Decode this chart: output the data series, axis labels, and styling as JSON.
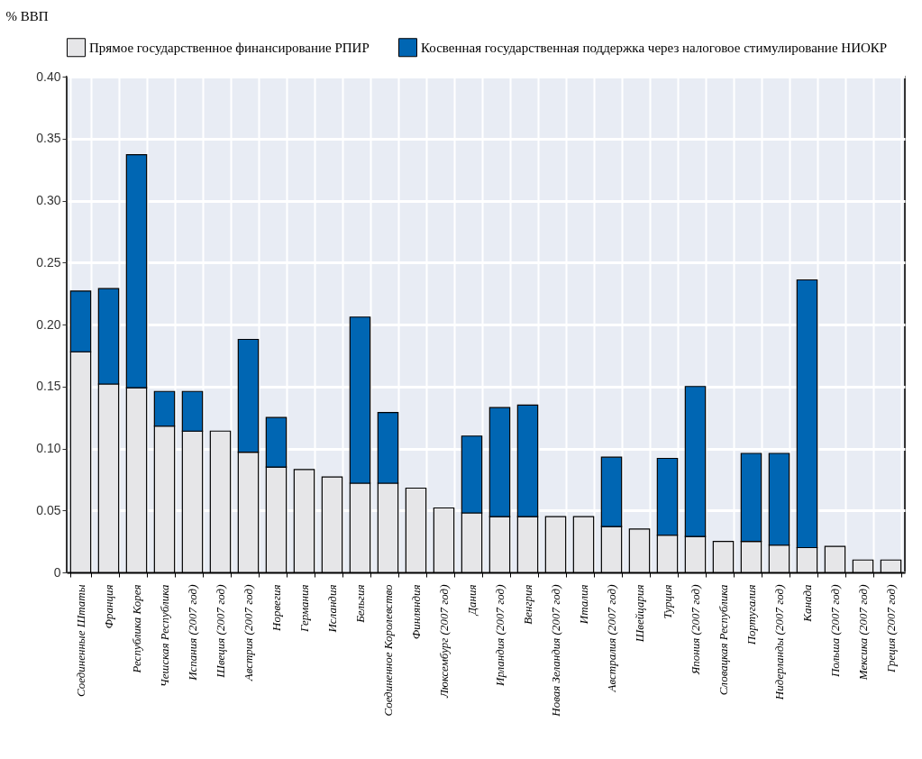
{
  "chart_data": {
    "type": "bar",
    "stacked": true,
    "ylabel": "% ВВП",
    "categories": [
      "Соединенные Штаты",
      "Франция",
      "Республика Корея",
      "Чешская Республика",
      "Испания (2007 год)",
      "Швеция (2007 год)",
      "Австрия (2007 год)",
      "Норвегия",
      "Германия",
      "Исландия",
      "Бельгия",
      "Соединенное Королевство",
      "Финляндия",
      "Люксембург (2007 год)",
      "Дания",
      "Ирландия (2007 год)",
      "Венгрия",
      "Новая Зеландия (2007 год)",
      "Италия",
      "Австралия (2007 год)",
      "Швейцария",
      "Турция",
      "Япония (2007 год)",
      "Словацкая Республика",
      "Португалия",
      "Нидерланды (2007 год)",
      "Канада",
      "Польша (2007 год)",
      "Мексика (2007 год)",
      "Греция (2007 год)"
    ],
    "series": [
      {
        "name": "Прямое государственное финансирование РПИР",
        "color": "#e6e6e8",
        "values": [
          0.178,
          0.152,
          0.149,
          0.118,
          0.114,
          0.114,
          0.097,
          0.085,
          0.083,
          0.077,
          0.072,
          0.072,
          0.068,
          0.052,
          0.048,
          0.045,
          0.045,
          0.045,
          0.045,
          0.037,
          0.035,
          0.03,
          0.029,
          0.025,
          0.025,
          0.022,
          0.02,
          0.021,
          0.01,
          0.01
        ]
      },
      {
        "name": "Косвенная государственная поддержка через налоговое стимулирование НИОКР",
        "color": "#0066b3",
        "values": [
          0.049,
          0.077,
          0.188,
          0.028,
          0.032,
          null,
          0.091,
          0.04,
          null,
          null,
          0.134,
          0.057,
          null,
          null,
          0.062,
          0.088,
          0.09,
          null,
          null,
          0.056,
          null,
          0.062,
          0.121,
          null,
          0.071,
          0.074,
          0.216,
          null,
          null,
          null
        ]
      }
    ],
    "ylim": [
      0,
      0.4
    ],
    "yticks": [
      0,
      0.05,
      {
        "value": 0.1,
        "label": "0.10"
      },
      0.15,
      {
        "value": 0.2,
        "label": "0.20"
      },
      0.25,
      {
        "value": 0.3,
        "label": "0.30"
      },
      0.35,
      {
        "value": 0.4,
        "label": "0.40"
      }
    ],
    "grid": true,
    "legend": "top"
  }
}
